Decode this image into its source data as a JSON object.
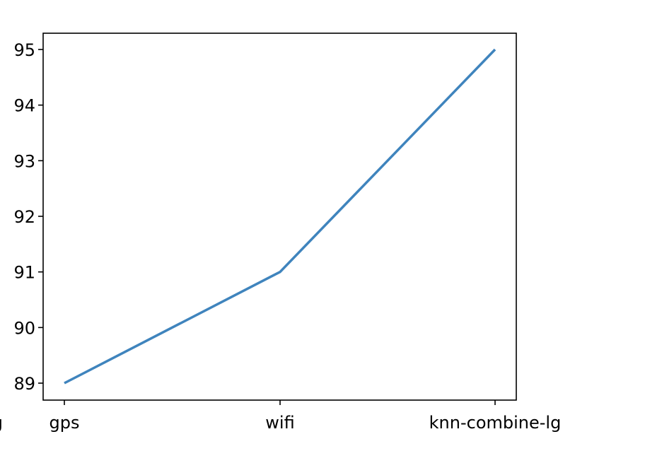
{
  "chart_data": {
    "type": "line",
    "categories": [
      "gps",
      "wifi",
      "knn-combine-lg"
    ],
    "series": [
      {
        "values": [
          89,
          91,
          95
        ],
        "color": "#3f84bd"
      }
    ],
    "title": "",
    "xlabel": "",
    "ylabel": "",
    "ylim": [
      88.7,
      95.3
    ],
    "yticks": [
      89,
      90,
      91,
      92,
      93,
      94,
      95
    ],
    "grid": false,
    "legend": "none"
  }
}
